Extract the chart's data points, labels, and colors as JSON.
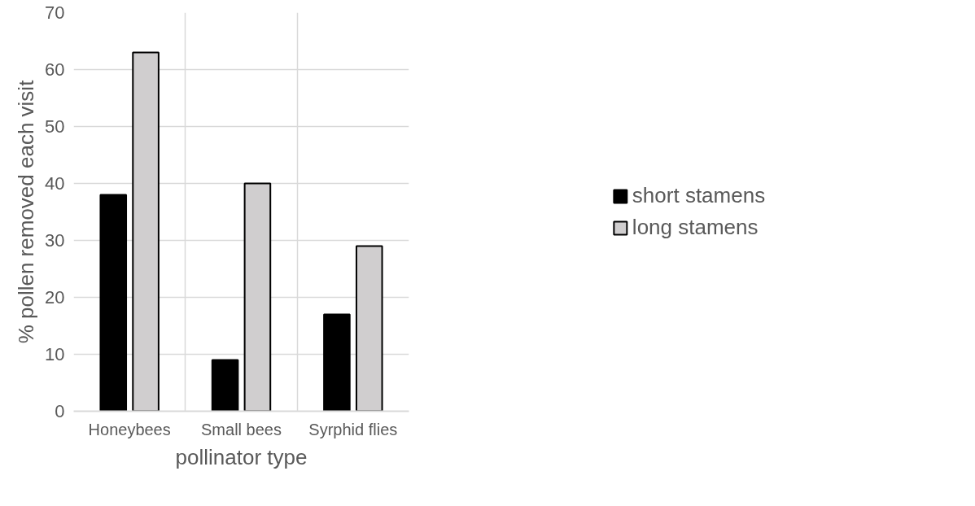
{
  "chart_data": {
    "type": "bar",
    "xlabel": "pollinator type",
    "ylabel": "% pollen removed each visit",
    "categories": [
      "Honeybees",
      "Small bees",
      "Syrphid flies"
    ],
    "series": [
      {
        "name": "short stamens",
        "color": "#000000",
        "values": [
          38,
          9,
          17
        ]
      },
      {
        "name": "long stamens",
        "color": "#d0cecf",
        "values": [
          63,
          40,
          29
        ]
      }
    ],
    "ylim": [
      0,
      70
    ],
    "yticks": [
      0,
      10,
      20,
      30,
      40,
      50,
      60,
      70
    ],
    "grid": true,
    "legend": "right"
  }
}
